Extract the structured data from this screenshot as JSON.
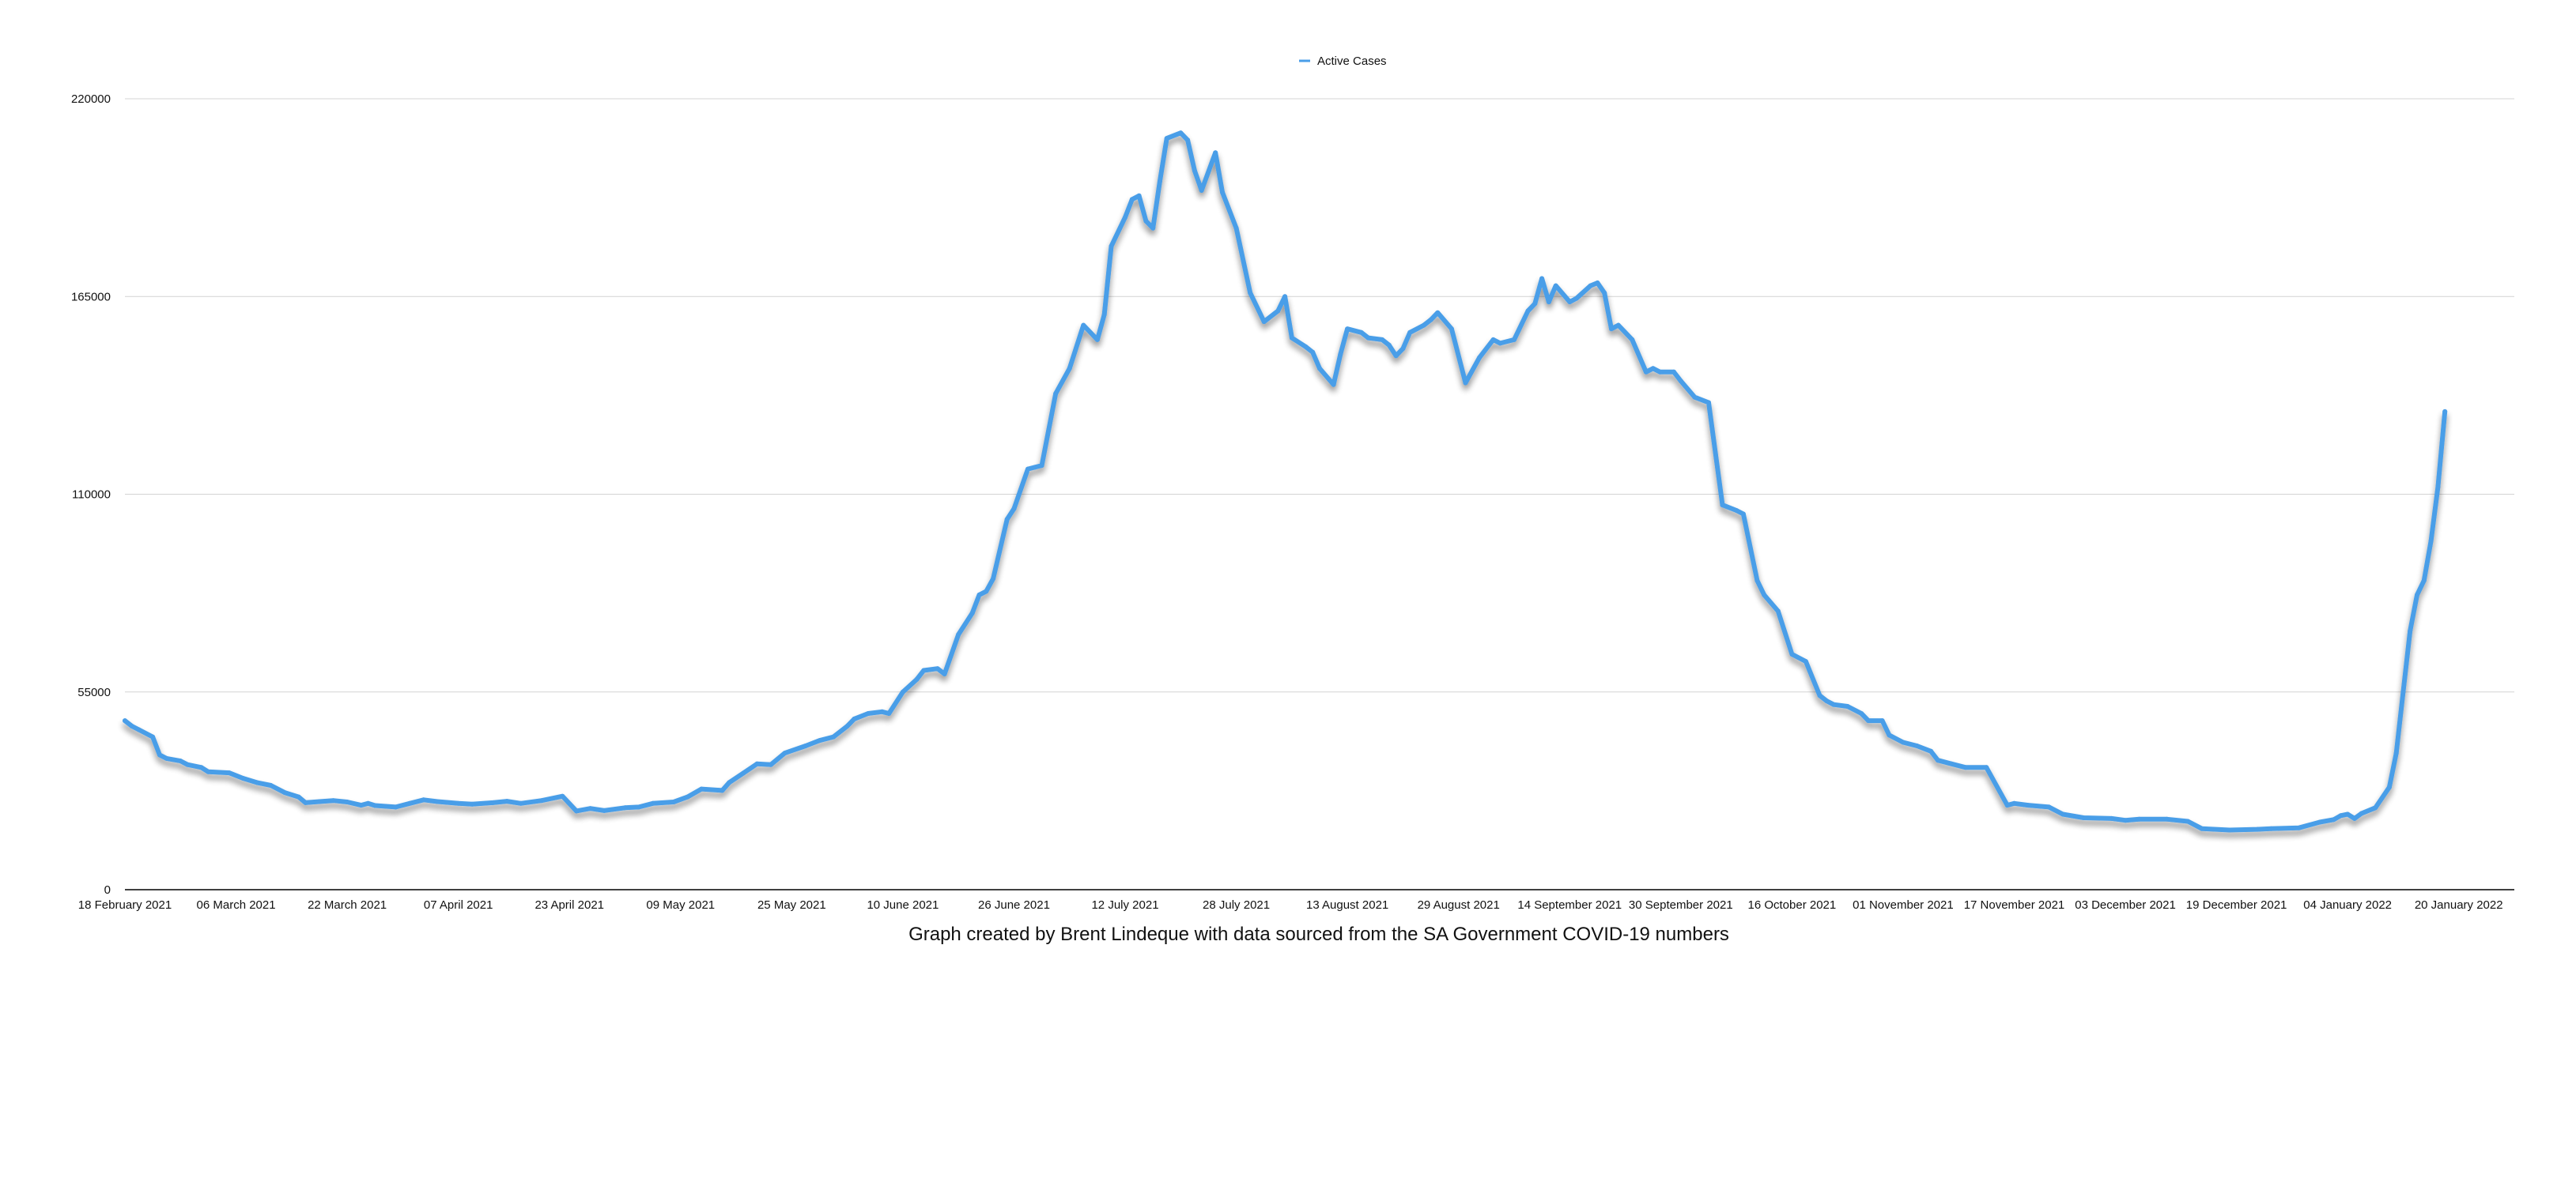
{
  "chart_data": {
    "type": "line",
    "x_axis_kind": "date",
    "xlim": [
      "2021-02-18",
      "2022-01-28"
    ],
    "ylim": [
      0,
      220000
    ],
    "yticks": [
      0,
      55000,
      110000,
      165000,
      220000
    ],
    "ytick_labels": [
      "0",
      "55000",
      "110000",
      "165000",
      "220000"
    ],
    "xticks": [
      "2021-02-18",
      "2021-03-06",
      "2021-03-22",
      "2021-04-07",
      "2021-04-23",
      "2021-05-09",
      "2021-05-25",
      "2021-06-10",
      "2021-06-26",
      "2021-07-12",
      "2021-07-28",
      "2021-08-13",
      "2021-08-29",
      "2021-09-14",
      "2021-09-30",
      "2021-10-16",
      "2021-11-01",
      "2021-11-17",
      "2021-12-03",
      "2021-12-19",
      "2022-01-04",
      "2022-01-20"
    ],
    "xtick_labels": [
      "18 February 2021",
      "06 March 2021",
      "22 March 2021",
      "07 April 2021",
      "23 April 2021",
      "09 May 2021",
      "25 May 2021",
      "10 June 2021",
      "26 June 2021",
      "12 July 2021",
      "28 July 2021",
      "13 August 2021",
      "29 August 2021",
      "14 September 2021",
      "30 September 2021",
      "16 October 2021",
      "01 November 2021",
      "17 November 2021",
      "03 December 2021",
      "19 December 2021",
      "04 January 2022",
      "20 January 2022"
    ],
    "grid": "horizontal",
    "legend_position": "top-center",
    "title": "",
    "xlabel": "",
    "ylabel": "",
    "caption": "Graph created by Brent Lindeque with data sourced from the SA Government COVID-19 numbers",
    "series": [
      {
        "name": "Active Cases",
        "color": "#4a9ee8",
        "points": [
          [
            "2021-02-18",
            47000
          ],
          [
            "2021-02-19",
            45500
          ],
          [
            "2021-02-20",
            44500
          ],
          [
            "2021-02-22",
            42500
          ],
          [
            "2021-02-23",
            37500
          ],
          [
            "2021-02-24",
            36500
          ],
          [
            "2021-02-26",
            35800
          ],
          [
            "2021-02-27",
            34800
          ],
          [
            "2021-03-01",
            34000
          ],
          [
            "2021-03-02",
            32800
          ],
          [
            "2021-03-05",
            32500
          ],
          [
            "2021-03-07",
            31000
          ],
          [
            "2021-03-09",
            29800
          ],
          [
            "2021-03-11",
            29000
          ],
          [
            "2021-03-13",
            27000
          ],
          [
            "2021-03-15",
            25800
          ],
          [
            "2021-03-16",
            24200
          ],
          [
            "2021-03-18",
            24500
          ],
          [
            "2021-03-20",
            24800
          ],
          [
            "2021-03-22",
            24400
          ],
          [
            "2021-03-24",
            23500
          ],
          [
            "2021-03-25",
            24000
          ],
          [
            "2021-03-26",
            23400
          ],
          [
            "2021-03-29",
            23000
          ],
          [
            "2021-03-31",
            24000
          ],
          [
            "2021-04-02",
            25000
          ],
          [
            "2021-04-04",
            24500
          ],
          [
            "2021-04-07",
            24000
          ],
          [
            "2021-04-09",
            23800
          ],
          [
            "2021-04-12",
            24200
          ],
          [
            "2021-04-14",
            24600
          ],
          [
            "2021-04-16",
            24000
          ],
          [
            "2021-04-19",
            24800
          ],
          [
            "2021-04-22",
            26000
          ],
          [
            "2021-04-24",
            21900
          ],
          [
            "2021-04-26",
            22600
          ],
          [
            "2021-04-28",
            22000
          ],
          [
            "2021-05-01",
            22800
          ],
          [
            "2021-05-03",
            23000
          ],
          [
            "2021-05-05",
            24000
          ],
          [
            "2021-05-08",
            24400
          ],
          [
            "2021-05-10",
            25800
          ],
          [
            "2021-05-12",
            28000
          ],
          [
            "2021-05-15",
            27600
          ],
          [
            "2021-05-16",
            29800
          ],
          [
            "2021-05-18",
            32400
          ],
          [
            "2021-05-20",
            35000
          ],
          [
            "2021-05-22",
            34800
          ],
          [
            "2021-05-24",
            38000
          ],
          [
            "2021-05-27",
            40000
          ],
          [
            "2021-05-29",
            41500
          ],
          [
            "2021-05-31",
            42500
          ],
          [
            "2021-06-02",
            45500
          ],
          [
            "2021-06-03",
            47500
          ],
          [
            "2021-06-05",
            49000
          ],
          [
            "2021-06-07",
            49500
          ],
          [
            "2021-06-08",
            49000
          ],
          [
            "2021-06-10",
            55000
          ],
          [
            "2021-06-12",
            58500
          ],
          [
            "2021-06-13",
            61000
          ],
          [
            "2021-06-15",
            61500
          ],
          [
            "2021-06-16",
            60000
          ],
          [
            "2021-06-18",
            71000
          ],
          [
            "2021-06-20",
            77000
          ],
          [
            "2021-06-21",
            82000
          ],
          [
            "2021-06-22",
            83000
          ],
          [
            "2021-06-23",
            86500
          ],
          [
            "2021-06-25",
            103000
          ],
          [
            "2021-06-26",
            106000
          ],
          [
            "2021-06-28",
            117000
          ],
          [
            "2021-06-29",
            117500
          ],
          [
            "2021-06-30",
            118000
          ],
          [
            "2021-07-02",
            138000
          ],
          [
            "2021-07-04",
            145000
          ],
          [
            "2021-07-06",
            157000
          ],
          [
            "2021-07-08",
            153000
          ],
          [
            "2021-07-09",
            160000
          ],
          [
            "2021-07-10",
            179000
          ],
          [
            "2021-07-12",
            187000
          ],
          [
            "2021-07-13",
            192000
          ],
          [
            "2021-07-14",
            193000
          ],
          [
            "2021-07-15",
            186000
          ],
          [
            "2021-07-16",
            184000
          ],
          [
            "2021-07-17",
            197000
          ],
          [
            "2021-07-18",
            209000
          ],
          [
            "2021-07-20",
            210500
          ],
          [
            "2021-07-21",
            208500
          ],
          [
            "2021-07-22",
            200000
          ],
          [
            "2021-07-23",
            194500
          ],
          [
            "2021-07-25",
            205000
          ],
          [
            "2021-07-26",
            194000
          ],
          [
            "2021-07-28",
            184000
          ],
          [
            "2021-07-30",
            166000
          ],
          [
            "2021-08-01",
            158000
          ],
          [
            "2021-08-03",
            161000
          ],
          [
            "2021-08-04",
            165000
          ],
          [
            "2021-08-05",
            153500
          ],
          [
            "2021-08-07",
            151000
          ],
          [
            "2021-08-08",
            149500
          ],
          [
            "2021-08-09",
            145000
          ],
          [
            "2021-08-11",
            140500
          ],
          [
            "2021-08-12",
            149000
          ],
          [
            "2021-08-13",
            156000
          ],
          [
            "2021-08-15",
            155000
          ],
          [
            "2021-08-16",
            153500
          ],
          [
            "2021-08-18",
            153000
          ],
          [
            "2021-08-19",
            151500
          ],
          [
            "2021-08-20",
            148500
          ],
          [
            "2021-08-21",
            150500
          ],
          [
            "2021-08-22",
            155000
          ],
          [
            "2021-08-24",
            157000
          ],
          [
            "2021-08-25",
            158500
          ],
          [
            "2021-08-26",
            160500
          ],
          [
            "2021-08-28",
            156000
          ],
          [
            "2021-08-30",
            141000
          ],
          [
            "2021-09-01",
            148000
          ],
          [
            "2021-09-03",
            153000
          ],
          [
            "2021-09-04",
            152000
          ],
          [
            "2021-09-06",
            153000
          ],
          [
            "2021-09-08",
            161000
          ],
          [
            "2021-09-09",
            163000
          ],
          [
            "2021-09-10",
            170000
          ],
          [
            "2021-09-11",
            163500
          ],
          [
            "2021-09-12",
            168000
          ],
          [
            "2021-09-14",
            163500
          ],
          [
            "2021-09-15",
            164500
          ],
          [
            "2021-09-17",
            168000
          ],
          [
            "2021-09-18",
            168800
          ],
          [
            "2021-09-19",
            166000
          ],
          [
            "2021-09-20",
            156000
          ],
          [
            "2021-09-21",
            157000
          ],
          [
            "2021-09-23",
            153000
          ],
          [
            "2021-09-25",
            144000
          ],
          [
            "2021-09-26",
            145000
          ],
          [
            "2021-09-27",
            144000
          ],
          [
            "2021-09-29",
            144000
          ],
          [
            "2021-09-30",
            141500
          ],
          [
            "2021-10-02",
            137000
          ],
          [
            "2021-10-04",
            135500
          ],
          [
            "2021-10-06",
            107000
          ],
          [
            "2021-10-08",
            105500
          ],
          [
            "2021-10-09",
            104500
          ],
          [
            "2021-10-11",
            86000
          ],
          [
            "2021-10-12",
            82000
          ],
          [
            "2021-10-14",
            77500
          ],
          [
            "2021-10-16",
            65500
          ],
          [
            "2021-10-18",
            63500
          ],
          [
            "2021-10-20",
            54000
          ],
          [
            "2021-10-21",
            52500
          ],
          [
            "2021-10-22",
            51500
          ],
          [
            "2021-10-24",
            51000
          ],
          [
            "2021-10-26",
            49000
          ],
          [
            "2021-10-27",
            47000
          ],
          [
            "2021-10-29",
            47000
          ],
          [
            "2021-10-30",
            43000
          ],
          [
            "2021-11-01",
            41000
          ],
          [
            "2021-11-03",
            40000
          ],
          [
            "2021-11-05",
            38500
          ],
          [
            "2021-11-06",
            36000
          ],
          [
            "2021-11-08",
            35000
          ],
          [
            "2021-11-10",
            34000
          ],
          [
            "2021-11-13",
            34000
          ],
          [
            "2021-11-16",
            23500
          ],
          [
            "2021-11-17",
            24000
          ],
          [
            "2021-11-19",
            23500
          ],
          [
            "2021-11-22",
            23000
          ],
          [
            "2021-11-24",
            21000
          ],
          [
            "2021-11-27",
            20000
          ],
          [
            "2021-12-01",
            19800
          ],
          [
            "2021-12-03",
            19300
          ],
          [
            "2021-12-05",
            19600
          ],
          [
            "2021-12-09",
            19600
          ],
          [
            "2021-12-12",
            19000
          ],
          [
            "2021-12-14",
            17000
          ],
          [
            "2021-12-18",
            16600
          ],
          [
            "2021-12-22",
            16800
          ],
          [
            "2021-12-24",
            17000
          ],
          [
            "2021-12-28",
            17200
          ],
          [
            "2021-12-31",
            18800
          ],
          [
            "2022-01-02",
            19500
          ],
          [
            "2022-01-03",
            20600
          ],
          [
            "2022-01-04",
            21000
          ],
          [
            "2022-01-05",
            19800
          ],
          [
            "2022-01-06",
            21200
          ],
          [
            "2022-01-08",
            22800
          ],
          [
            "2022-01-10",
            28500
          ],
          [
            "2022-01-11",
            38000
          ],
          [
            "2022-01-12",
            55000
          ],
          [
            "2022-01-13",
            72000
          ],
          [
            "2022-01-14",
            82000
          ],
          [
            "2022-01-15",
            86000
          ],
          [
            "2022-01-16",
            97000
          ],
          [
            "2022-01-17",
            112000
          ],
          [
            "2022-01-18",
            133000
          ]
        ]
      }
    ]
  }
}
